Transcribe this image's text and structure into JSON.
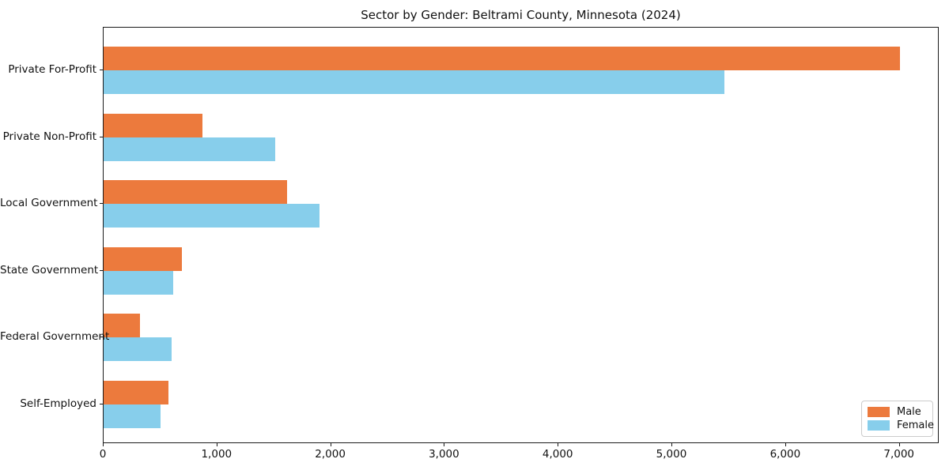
{
  "chart_data": {
    "type": "bar",
    "orientation": "horizontal",
    "title": "Sector by Gender: Beltrami County, Minnesota (2024)",
    "categories": [
      "Private For-Profit",
      "Private Non-Profit",
      "Local Government",
      "State Government",
      "Federal Government",
      "Self-Employed"
    ],
    "series": [
      {
        "name": "Male",
        "color": "#ec7a3d",
        "values": [
          7000,
          870,
          1610,
          690,
          320,
          570
        ]
      },
      {
        "name": "Female",
        "color": "#87ceeb",
        "values": [
          5460,
          1510,
          1900,
          610,
          600,
          500
        ]
      }
    ],
    "xlabel": "",
    "ylabel": "",
    "xlim": [
      0,
      7350
    ],
    "xticks": {
      "values": [
        0,
        1000,
        2000,
        3000,
        4000,
        5000,
        6000,
        7000
      ],
      "labels": [
        "0",
        "1,000",
        "2,000",
        "3,000",
        "4,000",
        "5,000",
        "6,000",
        "7,000"
      ]
    },
    "grid": false,
    "legend_position": "lower right",
    "colors": {
      "male": "#ec7a3d",
      "female": "#87ceeb",
      "spine": "#1a1a1a",
      "legend_border": "#cccccc"
    }
  }
}
